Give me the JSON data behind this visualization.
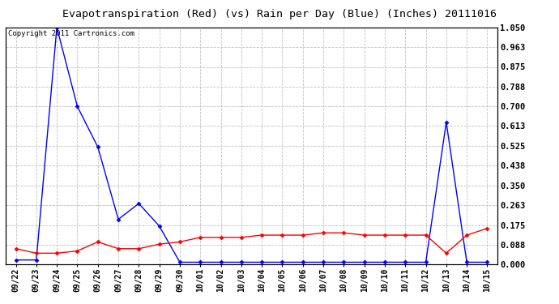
{
  "title": "Evapotranspiration (Red) (vs) Rain per Day (Blue) (Inches) 20111016",
  "copyright_text": "Copyright 2011 Cartronics.com",
  "x_labels": [
    "09/22",
    "09/23",
    "09/24",
    "09/25",
    "09/26",
    "09/27",
    "09/28",
    "09/29",
    "09/30",
    "10/01",
    "10/02",
    "10/03",
    "10/04",
    "10/05",
    "10/06",
    "10/07",
    "10/08",
    "10/09",
    "10/10",
    "10/11",
    "10/12",
    "10/13",
    "10/14",
    "10/15"
  ],
  "blue_data": [
    0.02,
    0.02,
    1.05,
    0.7,
    0.52,
    0.2,
    0.27,
    0.17,
    0.01,
    0.01,
    0.01,
    0.01,
    0.01,
    0.01,
    0.01,
    0.01,
    0.01,
    0.01,
    0.01,
    0.01,
    0.01,
    0.63,
    0.01,
    0.01
  ],
  "red_data": [
    0.07,
    0.05,
    0.05,
    0.06,
    0.1,
    0.07,
    0.07,
    0.09,
    0.1,
    0.12,
    0.12,
    0.12,
    0.13,
    0.13,
    0.13,
    0.14,
    0.14,
    0.13,
    0.13,
    0.13,
    0.13,
    0.05,
    0.13,
    0.16
  ],
  "ylim": [
    0.0,
    1.05
  ],
  "yticks": [
    0.0,
    0.088,
    0.175,
    0.263,
    0.35,
    0.438,
    0.525,
    0.613,
    0.7,
    0.788,
    0.875,
    0.963,
    1.05
  ],
  "blue_color": "#0000FF",
  "red_color": "#FF0000",
  "background_color": "#FFFFFF",
  "grid_color": "#BBBBBB",
  "title_fontsize": 9.5,
  "copyright_fontsize": 6.5,
  "tick_fontsize": 7.0,
  "ytick_fontsize": 7.5
}
